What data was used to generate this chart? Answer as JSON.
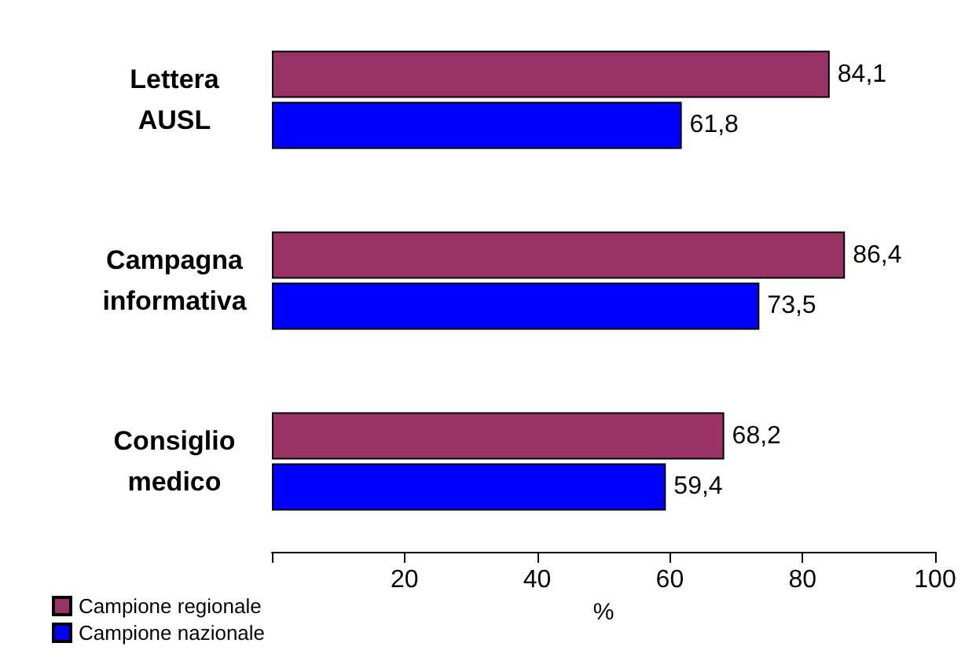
{
  "chart_data": {
    "type": "bar",
    "orientation": "horizontal",
    "categories": [
      "Lettera\nAUSL",
      "Campagna\ninformativa",
      "Consiglio\nmedico"
    ],
    "series": [
      {
        "name": "Campione regionale",
        "color": "#993366",
        "values": [
          84.1,
          86.4,
          68.2
        ],
        "value_labels": [
          "84,1",
          "86,4",
          "68,2"
        ]
      },
      {
        "name": "Campione nazionale",
        "color": "#0000ff",
        "values": [
          61.8,
          73.5,
          59.4
        ],
        "value_labels": [
          "61,8",
          "73,5",
          "59,4"
        ]
      }
    ],
    "xlabel": "%",
    "xlim": [
      0,
      100
    ],
    "xticks": [
      {
        "value": 0,
        "label": null
      },
      20,
      40,
      60,
      80,
      100
    ],
    "grid": false,
    "legend": "bottom left"
  }
}
